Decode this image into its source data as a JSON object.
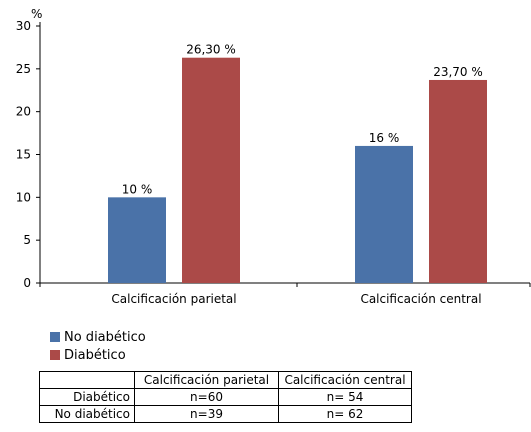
{
  "chart_data": {
    "type": "bar",
    "ylabel": "%",
    "ylim": [
      0,
      30
    ],
    "yticks": [
      0,
      5,
      10,
      15,
      20,
      25,
      30
    ],
    "grid": false,
    "categories": [
      "Calcificación parietal",
      "Calcificación central"
    ],
    "series": [
      {
        "name": "No diabético",
        "color": "#4a72a8",
        "values": [
          10,
          16
        ],
        "labels": [
          "10 %",
          "16 %"
        ]
      },
      {
        "name": "Diabético",
        "color": "#ab4a48",
        "values": [
          26.3,
          23.7
        ],
        "labels": [
          "26,30 %",
          "23,70 %"
        ]
      }
    ],
    "legend_position": "bottom-left"
  },
  "legend": {
    "items": [
      {
        "label": "No diabético",
        "color": "#4a72a8"
      },
      {
        "label": "Diabético",
        "color": "#ab4a48"
      }
    ]
  },
  "table": {
    "headers": [
      "",
      "Calcificación parietal",
      "Calcificación central"
    ],
    "rows": [
      {
        "label": "Diabético",
        "c1": "n=60",
        "c2": "n= 54"
      },
      {
        "label": "No diabético",
        "c1": "n=39",
        "c2": "n= 62"
      }
    ]
  }
}
